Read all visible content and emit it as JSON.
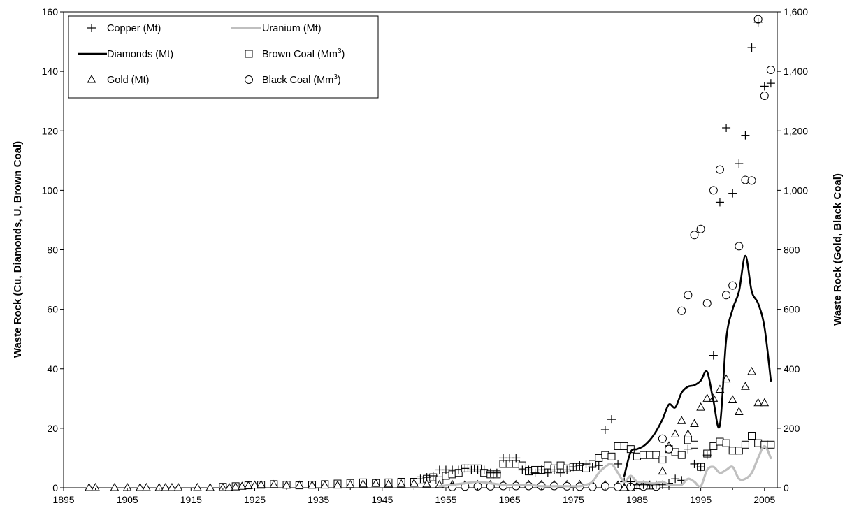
{
  "chart_data": {
    "type": "scatter",
    "title": "",
    "xlabel": "",
    "ylabel_left": "Waste Rock (Cu, Diamonds, U, Brown Coal)",
    "ylabel_right": "Waste Rock (Gold, Black Coal)",
    "xlim": [
      1895,
      2007
    ],
    "ylim_left": [
      0,
      160
    ],
    "ylim_right": [
      0,
      1600
    ],
    "x_ticks": [
      "1895",
      "1905",
      "1915",
      "1925",
      "1935",
      "1945",
      "1955",
      "1965",
      "1975",
      "1985",
      "1995",
      "2005"
    ],
    "y_left_ticks": [
      "0",
      "20",
      "40",
      "60",
      "80",
      "100",
      "120",
      "140",
      "160"
    ],
    "y_right_ticks": [
      "0",
      "200",
      "400",
      "600",
      "800",
      "1,000",
      "1,200",
      "1,400",
      "1,600"
    ],
    "grid": false,
    "legend_placement": "top-left",
    "legend": [
      {
        "key": "copper",
        "label": "Copper (Mt)",
        "sup": ""
      },
      {
        "key": "uranium",
        "label": "Uranium (Mt)",
        "sup": ""
      },
      {
        "key": "diamonds",
        "label": "Diamonds (Mt)",
        "sup": ""
      },
      {
        "key": "brown",
        "label": "Brown Coal  (Mm",
        "sup": "3"
      },
      {
        "key": "gold",
        "label": "Gold (Mt)",
        "sup": ""
      },
      {
        "key": "black",
        "label": "Black Coal  (Mm",
        "sup": "3"
      }
    ],
    "series": [
      {
        "name": "Copper (Mt)",
        "key": "copper",
        "marker": "plus",
        "axis": "left",
        "x": [
          1951,
          1952,
          1953,
          1954,
          1955,
          1956,
          1957,
          1958,
          1959,
          1960,
          1961,
          1962,
          1963,
          1964,
          1965,
          1966,
          1967,
          1968,
          1969,
          1970,
          1971,
          1972,
          1973,
          1974,
          1975,
          1976,
          1977,
          1978,
          1979,
          1980,
          1981,
          1982,
          1983,
          1984,
          1985,
          1986,
          1987,
          1988,
          1989,
          1990,
          1991,
          1992,
          1993,
          1994,
          1995,
          1996,
          1997,
          1998,
          1999,
          2000,
          2001,
          2002,
          2003,
          2004,
          2005,
          2006
        ],
        "y": [
          3,
          3.5,
          4,
          6,
          6,
          6,
          6,
          6.5,
          6,
          6,
          6,
          5,
          5,
          10,
          10,
          10,
          6,
          6,
          5,
          6,
          5,
          6,
          5,
          6,
          7,
          7.5,
          8,
          7,
          7.5,
          19.5,
          23,
          8,
          2,
          2,
          1,
          1,
          1,
          1,
          1,
          1.5,
          3,
          2.5,
          13,
          8,
          7,
          11,
          44.5,
          96,
          121,
          99,
          109,
          118.5,
          148,
          156.5,
          135,
          136
        ]
      },
      {
        "name": "Uranium (Mt)",
        "key": "uranium",
        "marker": "line",
        "axis": "left",
        "x": [
          1954,
          1956,
          1958,
          1960,
          1962,
          1964,
          1966,
          1968,
          1970,
          1972,
          1974,
          1976,
          1977,
          1978,
          1979,
          1980,
          1981,
          1982,
          1983,
          1984,
          1985,
          1986,
          1987,
          1988,
          1989,
          1990,
          1991,
          1992,
          1993,
          1994,
          1995,
          1996,
          1997,
          1998,
          1999,
          2000,
          2001,
          2002,
          2003,
          2004,
          2005,
          2006
        ],
        "y": [
          0.5,
          1,
          1.5,
          2,
          1.5,
          1,
          1,
          1,
          0.5,
          0.5,
          0.5,
          0.5,
          1,
          2,
          5,
          7,
          8,
          5,
          2,
          4,
          2,
          2,
          1.5,
          1.5,
          2,
          1,
          1,
          1,
          3,
          2,
          0.5,
          6,
          7,
          5,
          6,
          7,
          3,
          3,
          5,
          10,
          14,
          10
        ]
      },
      {
        "name": "Diamonds (Mt)",
        "key": "diamonds",
        "marker": "line",
        "axis": "left",
        "x": [
          1983,
          1984,
          1985,
          1986,
          1987,
          1988,
          1989,
          1990,
          1991,
          1992,
          1993,
          1994,
          1995,
          1996,
          1997,
          1998,
          1999,
          2000,
          2001,
          2002,
          2003,
          2004,
          2005,
          2006
        ],
        "y": [
          4,
          12,
          13,
          14,
          16,
          19,
          23,
          28,
          27,
          32,
          34,
          34.5,
          36,
          39,
          29,
          21,
          50,
          60,
          66,
          78,
          66,
          62,
          54,
          36
        ]
      },
      {
        "name": "Brown Coal  (Mm3)",
        "key": "brown",
        "marker": "square",
        "axis": "left",
        "x": [
          1920,
          1922,
          1924,
          1926,
          1928,
          1930,
          1932,
          1934,
          1936,
          1938,
          1940,
          1942,
          1944,
          1946,
          1948,
          1950,
          1951,
          1952,
          1953,
          1954,
          1955,
          1956,
          1957,
          1958,
          1959,
          1960,
          1961,
          1962,
          1963,
          1964,
          1965,
          1966,
          1967,
          1968,
          1969,
          1970,
          1971,
          1972,
          1973,
          1974,
          1975,
          1976,
          1977,
          1978,
          1979,
          1980,
          1981,
          1982,
          1983,
          1984,
          1985,
          1986,
          1987,
          1988,
          1989,
          1990,
          1991,
          1992,
          1993,
          1994,
          1995,
          1996,
          1997,
          1998,
          1999,
          2000,
          2001,
          2002,
          2003,
          2004,
          2005,
          2006
        ],
        "y": [
          0.3,
          0.5,
          0.8,
          1.0,
          1.2,
          1.0,
          0.8,
          1.0,
          1.2,
          1.4,
          1.6,
          1.8,
          1.6,
          1.8,
          2.0,
          2.0,
          2.5,
          3,
          3.5,
          2.5,
          4,
          4.5,
          5,
          6.5,
          6.5,
          6.5,
          5,
          4.5,
          4.5,
          8,
          8,
          8,
          7.5,
          5.5,
          6,
          6,
          7.5,
          6.5,
          7.5,
          6.5,
          7,
          7,
          6.5,
          8,
          10,
          11,
          10.5,
          14,
          14,
          13,
          10.5,
          11,
          11,
          11,
          9.5,
          13,
          12,
          11,
          16,
          14.5,
          7,
          11.5,
          14,
          15.5,
          15,
          12.5,
          12.5,
          14.5,
          17.5,
          15,
          14.5,
          14.5
        ]
      },
      {
        "name": "Gold (Mt)",
        "key": "gold",
        "marker": "triangle",
        "axis": "right",
        "x": [
          1899,
          1900,
          1903,
          1905,
          1907,
          1908,
          1910,
          1911,
          1912,
          1913,
          1916,
          1918,
          1920,
          1921,
          1922,
          1923,
          1924,
          1925,
          1926,
          1928,
          1930,
          1932,
          1934,
          1936,
          1938,
          1940,
          1942,
          1944,
          1946,
          1948,
          1950,
          1952,
          1954,
          1956,
          1958,
          1960,
          1962,
          1964,
          1966,
          1968,
          1970,
          1972,
          1974,
          1976,
          1978,
          1980,
          1982,
          1983,
          1984,
          1985,
          1986,
          1987,
          1988,
          1989,
          1990,
          1991,
          1992,
          1993,
          1994,
          1995,
          1996,
          1997,
          1998,
          1999,
          2000,
          2001,
          2002,
          2003,
          2004,
          2005
        ],
        "y": [
          0,
          0,
          0,
          0,
          0,
          0,
          0,
          0,
          0,
          0,
          0,
          0,
          0,
          0,
          2,
          4,
          6,
          8,
          10,
          10,
          8,
          8,
          8,
          8,
          8,
          10,
          12,
          14,
          12,
          12,
          14,
          12,
          10,
          10,
          10,
          10,
          10,
          10,
          10,
          10,
          10,
          10,
          10,
          10,
          10,
          10,
          8,
          0,
          0,
          6,
          5,
          5,
          5,
          55,
          140,
          180,
          225,
          180,
          215,
          270,
          300,
          300,
          330,
          365,
          295,
          255,
          340,
          390,
          285,
          285
        ]
      },
      {
        "name": "Black Coal  (Mm3)",
        "key": "black",
        "marker": "circle",
        "axis": "right",
        "x": [
          1956,
          1958,
          1960,
          1962,
          1964,
          1966,
          1968,
          1970,
          1972,
          1974,
          1976,
          1978,
          1980,
          1982,
          1984,
          1986,
          1988,
          1989,
          1990,
          1992,
          1993,
          1994,
          1995,
          1996,
          1997,
          1998,
          1999,
          2000,
          2001,
          2002,
          2003,
          2004,
          2005,
          2006
        ],
        "y": [
          3,
          4,
          5,
          5,
          6,
          6,
          6,
          6,
          6,
          5,
          4,
          3,
          5,
          3,
          3,
          4,
          4,
          165,
          130,
          595,
          648,
          850,
          870,
          620,
          1000,
          1070,
          648,
          680,
          812,
          1035,
          1033,
          1575,
          1318,
          1405
        ]
      }
    ]
  }
}
